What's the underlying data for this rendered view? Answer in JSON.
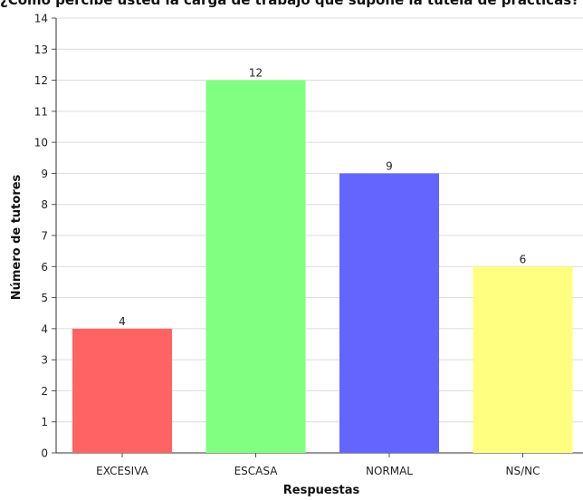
{
  "chart_data": {
    "type": "bar",
    "title": "¿Cómo percibe usted la carga de trabajo que supone la tutela de prácticas?",
    "xlabel": "Respuestas",
    "ylabel": "Número de tutores",
    "categories": [
      "EXCESIVA",
      "ESCASA",
      "NORMAL",
      "NS/NC"
    ],
    "values": [
      4,
      12,
      9,
      6
    ],
    "colors": [
      "#ff6363",
      "#80ff80",
      "#6464ff",
      "#ffff80"
    ],
    "data_labels": [
      "4",
      "12",
      "9",
      "6"
    ],
    "ylim": [
      0,
      14
    ],
    "yticks": [
      0,
      1,
      2,
      3,
      4,
      5,
      6,
      7,
      8,
      9,
      10,
      11,
      12,
      13,
      14
    ],
    "grid": true,
    "legend": "none"
  }
}
